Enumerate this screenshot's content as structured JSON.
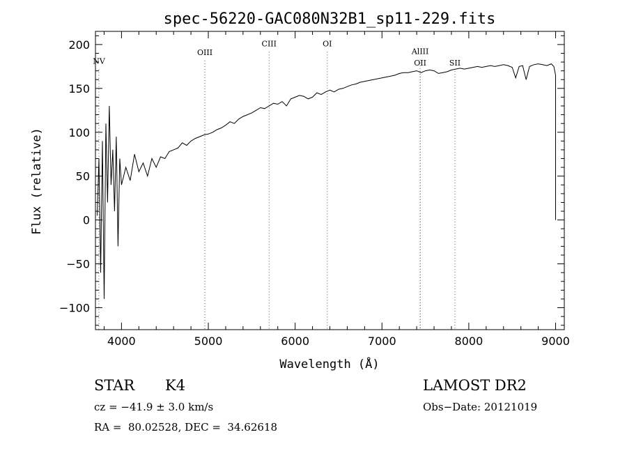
{
  "chart_data": {
    "type": "line",
    "title": "spec-56220-GAC080N32B1_sp11-229.fits",
    "xlabel": "Wavelength (Å)",
    "ylabel": "Flux (relative)",
    "xlim": [
      3700,
      9100
    ],
    "ylim": [
      -125,
      215
    ],
    "xticks": [
      4000,
      5000,
      6000,
      7000,
      8000,
      9000
    ],
    "yticks": [
      -100,
      -50,
      0,
      50,
      100,
      150,
      200
    ],
    "xtick_labels": [
      "4000",
      "5000",
      "6000",
      "7000",
      "8000",
      "9000"
    ],
    "ytick_labels": [
      "−100",
      "−50",
      "0",
      "50",
      "100",
      "150",
      "200"
    ],
    "grid": false,
    "line_markers": [
      {
        "label": "NV",
        "x": 3740,
        "label_y": 178
      },
      {
        "label": "OIII",
        "x": 4960,
        "label_y": 188
      },
      {
        "label": "CIII",
        "x": 5700,
        "label_y": 198
      },
      {
        "label": "OI",
        "x": 6370,
        "label_y": 198
      },
      {
        "label": "AlIII",
        "x": 7440,
        "label_y": 189
      },
      {
        "label": "OII",
        "x": 7440,
        "label_y": 176
      },
      {
        "label": "SII",
        "x": 7840,
        "label_y": 176
      }
    ],
    "series": [
      {
        "values_note": "",
        "points": [
          [
            3720,
            5
          ],
          [
            3740,
            70
          ],
          [
            3760,
            -60
          ],
          [
            3780,
            90
          ],
          [
            3800,
            -90
          ],
          [
            3820,
            110
          ],
          [
            3840,
            20
          ],
          [
            3860,
            130
          ],
          [
            3880,
            40
          ],
          [
            3900,
            80
          ],
          [
            3920,
            10
          ],
          [
            3940,
            95
          ],
          [
            3960,
            -30
          ],
          [
            3980,
            70
          ],
          [
            4000,
            40
          ],
          [
            4050,
            60
          ],
          [
            4100,
            45
          ],
          [
            4150,
            75
          ],
          [
            4200,
            55
          ],
          [
            4250,
            65
          ],
          [
            4300,
            50
          ],
          [
            4350,
            70
          ],
          [
            4400,
            60
          ],
          [
            4450,
            72
          ],
          [
            4500,
            70
          ],
          [
            4550,
            78
          ],
          [
            4600,
            80
          ],
          [
            4650,
            82
          ],
          [
            4700,
            88
          ],
          [
            4750,
            85
          ],
          [
            4800,
            90
          ],
          [
            4850,
            93
          ],
          [
            4900,
            95
          ],
          [
            4950,
            97
          ],
          [
            5000,
            98
          ],
          [
            5050,
            100
          ],
          [
            5100,
            103
          ],
          [
            5150,
            105
          ],
          [
            5200,
            108
          ],
          [
            5250,
            112
          ],
          [
            5300,
            110
          ],
          [
            5350,
            115
          ],
          [
            5400,
            118
          ],
          [
            5450,
            120
          ],
          [
            5500,
            122
          ],
          [
            5550,
            125
          ],
          [
            5600,
            128
          ],
          [
            5650,
            127
          ],
          [
            5700,
            130
          ],
          [
            5750,
            133
          ],
          [
            5800,
            132
          ],
          [
            5850,
            135
          ],
          [
            5900,
            130
          ],
          [
            5950,
            138
          ],
          [
            6000,
            140
          ],
          [
            6050,
            142
          ],
          [
            6100,
            141
          ],
          [
            6150,
            138
          ],
          [
            6200,
            140
          ],
          [
            6250,
            145
          ],
          [
            6300,
            143
          ],
          [
            6350,
            146
          ],
          [
            6400,
            148
          ],
          [
            6450,
            146
          ],
          [
            6500,
            149
          ],
          [
            6550,
            150
          ],
          [
            6600,
            152
          ],
          [
            6650,
            154
          ],
          [
            6700,
            155
          ],
          [
            6750,
            157
          ],
          [
            6800,
            158
          ],
          [
            6850,
            159
          ],
          [
            6900,
            160
          ],
          [
            6950,
            161
          ],
          [
            7000,
            162
          ],
          [
            7050,
            163
          ],
          [
            7100,
            164
          ],
          [
            7150,
            165
          ],
          [
            7200,
            167
          ],
          [
            7250,
            168
          ],
          [
            7300,
            168
          ],
          [
            7350,
            169
          ],
          [
            7400,
            170
          ],
          [
            7450,
            168
          ],
          [
            7500,
            170
          ],
          [
            7550,
            171
          ],
          [
            7600,
            170
          ],
          [
            7650,
            167
          ],
          [
            7700,
            168
          ],
          [
            7750,
            169
          ],
          [
            7800,
            171
          ],
          [
            7850,
            172
          ],
          [
            7900,
            173
          ],
          [
            7950,
            172
          ],
          [
            8000,
            173
          ],
          [
            8050,
            174
          ],
          [
            8100,
            175
          ],
          [
            8150,
            174
          ],
          [
            8200,
            175
          ],
          [
            8250,
            176
          ],
          [
            8300,
            175
          ],
          [
            8350,
            176
          ],
          [
            8400,
            177
          ],
          [
            8450,
            176
          ],
          [
            8500,
            174
          ],
          [
            8540,
            162
          ],
          [
            8580,
            175
          ],
          [
            8620,
            176
          ],
          [
            8660,
            160
          ],
          [
            8700,
            175
          ],
          [
            8750,
            177
          ],
          [
            8800,
            178
          ],
          [
            8850,
            177
          ],
          [
            8900,
            176
          ],
          [
            8950,
            178
          ],
          [
            8980,
            175
          ],
          [
            9000,
            165
          ],
          [
            9000,
            0
          ]
        ]
      }
    ]
  },
  "footer": {
    "object_class": "STAR",
    "subclass": "K4",
    "redshift": "cz = −41.9 ± 3.0 km/s",
    "coords": "RA =  80.02528, DEC =  34.62618",
    "survey": "LAMOST DR2",
    "obs_date": "Obs−Date: 20121019"
  }
}
